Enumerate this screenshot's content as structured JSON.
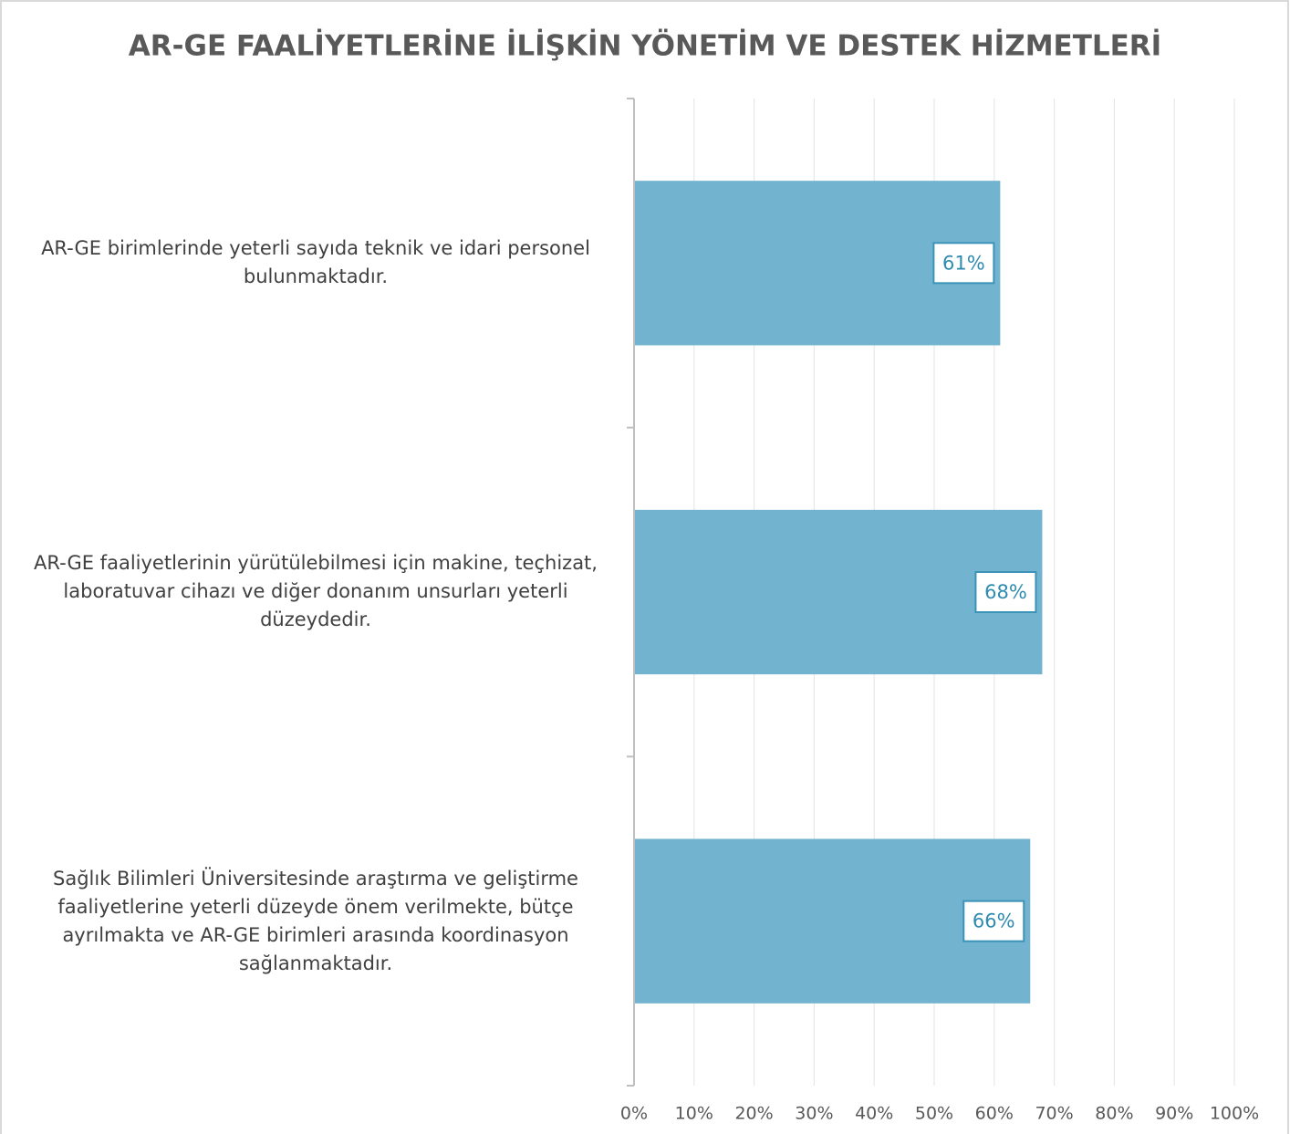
{
  "chart_data": {
    "type": "barh",
    "title": "AR-GE FAALİYETLERİNE İLİŞKİN YÖNETİM VE DESTEK HİZMETLERİ",
    "categories": [
      "AR-GE birimlerinde yeterli sayıda teknik ve idari personel bulunmaktadır.",
      "AR-GE faaliyetlerinin yürütülebilmesi için makine, teçhizat, laboratuvar cihazı ve diğer donanım unsurları yeterli düzeydedir.",
      "Sağlık Bilimleri Üniversitesinde araştırma ve geliştirme faaliyetlerine yeterli düzeyde önem verilmekte, bütçe ayrılmakta ve AR-GE birimleri arasında koordinasyon sağlanmaktadır."
    ],
    "values": [
      61,
      68,
      66
    ],
    "value_labels": [
      "61%",
      "68%",
      "66%"
    ],
    "color": "#72b4cf",
    "xlim": [
      0,
      100
    ],
    "xticks": [
      {
        "value": 0,
        "label": "0%"
      },
      {
        "value": 10,
        "label": "10%"
      },
      {
        "value": 20,
        "label": "20%"
      },
      {
        "value": 30,
        "label": "30%"
      },
      {
        "value": 40,
        "label": "40%"
      },
      {
        "value": 50,
        "label": "50%"
      },
      {
        "value": 60,
        "label": "60%"
      },
      {
        "value": 70,
        "label": "70%"
      },
      {
        "value": 80,
        "label": "80%"
      },
      {
        "value": 90,
        "label": "90%"
      },
      {
        "value": 100,
        "label": "100%"
      }
    ],
    "grid": true
  }
}
